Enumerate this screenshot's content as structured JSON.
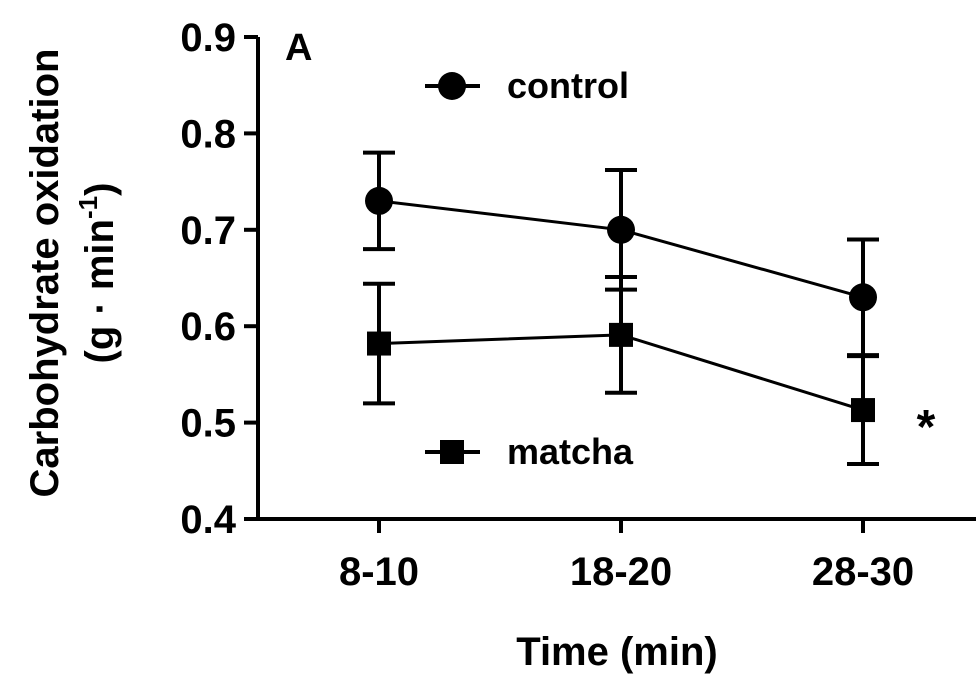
{
  "chart_data": {
    "type": "line",
    "panel_label": "A",
    "xlabel": "Time (min)",
    "ylabel": "Carbohydrate oxidation",
    "ylabel_units": {
      "prefix": "(g · min",
      "exponent": "-1",
      "suffix": ")"
    },
    "categories": [
      "8-10",
      "18-20",
      "28-30"
    ],
    "ylim": [
      0.4,
      0.9
    ],
    "yticks": [
      0.4,
      0.5,
      0.6,
      0.7,
      0.8,
      0.9
    ],
    "ytick_labels": [
      "0.4",
      "0.5",
      "0.6",
      "0.7",
      "0.8",
      "0.9"
    ],
    "grid": false,
    "legend_placement": "inside",
    "series": [
      {
        "name": "control",
        "marker": "circle",
        "values": [
          0.73,
          0.7,
          0.63
        ],
        "error": [
          0.05,
          0.062,
          0.06
        ]
      },
      {
        "name": "matcha",
        "marker": "square",
        "values": [
          0.582,
          0.591,
          0.513
        ],
        "error": [
          0.062,
          0.06,
          0.056
        ]
      }
    ],
    "annotations": [
      {
        "text": "*",
        "category": "28-30",
        "series": "matcha"
      }
    ]
  }
}
